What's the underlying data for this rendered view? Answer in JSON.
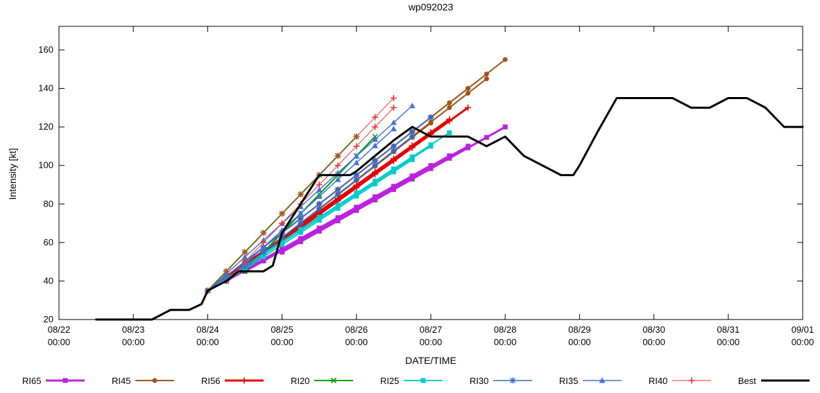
{
  "title": "wp092023",
  "axes": {
    "x": {
      "label": "DATE/TIME",
      "range_hours": [
        0,
        240
      ],
      "tick_interval_hours": 24,
      "ticks": [
        {
          "hour": 0,
          "date": "08/22",
          "time": "00:00"
        },
        {
          "hour": 24,
          "date": "08/23",
          "time": "00:00"
        },
        {
          "hour": 48,
          "date": "08/24",
          "time": "00:00"
        },
        {
          "hour": 72,
          "date": "08/25",
          "time": "00:00"
        },
        {
          "hour": 96,
          "date": "08/26",
          "time": "00:00"
        },
        {
          "hour": 120,
          "date": "08/27",
          "time": "00:00"
        },
        {
          "hour": 144,
          "date": "08/28",
          "time": "00:00"
        },
        {
          "hour": 168,
          "date": "08/29",
          "time": "00:00"
        },
        {
          "hour": 192,
          "date": "08/30",
          "time": "00:00"
        },
        {
          "hour": 216,
          "date": "08/31",
          "time": "00:00"
        },
        {
          "hour": 240,
          "date": "09/01",
          "time": "00:00"
        }
      ]
    },
    "y": {
      "label": "Intensity [kt]",
      "range": [
        20,
        160
      ],
      "ticks": [
        20,
        40,
        60,
        80,
        100,
        120,
        140,
        160
      ]
    }
  },
  "chart_data": {
    "type": "line",
    "title": "wp092023",
    "xlabel": "DATE/TIME",
    "ylabel": "Intensity [kt]",
    "x_unit": "hours since 08/22 00:00",
    "xlim_hours": [
      0,
      240
    ],
    "ylim": [
      20,
      160
    ],
    "grid": false,
    "legend_position": "bottom",
    "series": [
      {
        "name": "RI65",
        "color": "#bb22dd",
        "width": 3,
        "marker": "square",
        "segments": [
          [
            [
              48,
              35
            ],
            [
              120,
              100
            ]
          ],
          [
            [
              54,
              40
            ],
            [
              126,
              105
            ]
          ],
          [
            [
              60,
              45
            ],
            [
              132,
              110
            ]
          ],
          [
            [
              72,
              55
            ],
            [
              144,
              120
            ]
          ]
        ]
      },
      {
        "name": "RI45",
        "color": "#a05418",
        "width": 2,
        "marker": "circle",
        "segments": [
          [
            [
              48,
              35
            ],
            [
              144,
              155
            ]
          ],
          [
            [
              54,
              40
            ],
            [
              138,
              145
            ]
          ],
          [
            [
              60,
              50
            ],
            [
              132,
              140
            ]
          ],
          [
            [
              66,
              55
            ],
            [
              120,
              122
            ]
          ]
        ]
      },
      {
        "name": "RI56",
        "color": "#e60000",
        "width": 3,
        "marker": "plus",
        "segments": [
          [
            [
              48,
              35
            ],
            [
              126,
              124
            ]
          ],
          [
            [
              54,
              40
            ],
            [
              132,
              130
            ]
          ],
          [
            [
              60,
              48
            ],
            [
              120,
              117
            ]
          ]
        ]
      },
      {
        "name": "RI20",
        "color": "#00a000",
        "width": 2,
        "marker": "x",
        "segments": [
          [
            [
              48,
              35
            ],
            [
              96,
              115
            ]
          ],
          [
            [
              60,
              45
            ],
            [
              102,
              115
            ]
          ]
        ]
      },
      {
        "name": "RI25",
        "color": "#00cccc",
        "width": 2,
        "marker": "square",
        "segments": [
          [
            [
              48,
              35
            ],
            [
              120,
              110
            ]
          ],
          [
            [
              54,
              40
            ],
            [
              114,
              103
            ]
          ],
          [
            [
              60,
              48
            ],
            [
              126,
              117
            ]
          ]
        ]
      },
      {
        "name": "RI30",
        "color": "#2e6bd6",
        "width": 1.5,
        "marker": "star",
        "segments": [
          [
            [
              48,
              35
            ],
            [
              120,
              125
            ]
          ],
          [
            [
              54,
              40
            ],
            [
              114,
              115
            ]
          ]
        ]
      },
      {
        "name": "RI35",
        "color": "#4472e0",
        "width": 1.5,
        "marker": "triangle",
        "segments": [
          [
            [
              48,
              35
            ],
            [
              114,
              131
            ]
          ],
          [
            [
              54,
              40
            ],
            [
              108,
              119
            ]
          ]
        ]
      },
      {
        "name": "RI40",
        "color": "#ee3333",
        "width": 1,
        "marker": "plus",
        "segments": [
          [
            [
              48,
              35
            ],
            [
              108,
              135
            ]
          ],
          [
            [
              54,
              40
            ],
            [
              108,
              130
            ]
          ]
        ]
      },
      {
        "name": "Best",
        "color": "#000000",
        "width": 3,
        "marker": "none",
        "points": [
          [
            12,
            20
          ],
          [
            30,
            20
          ],
          [
            36,
            25
          ],
          [
            42,
            25
          ],
          [
            46,
            28
          ],
          [
            48,
            35
          ],
          [
            54,
            40
          ],
          [
            58,
            45
          ],
          [
            66,
            45
          ],
          [
            69,
            48
          ],
          [
            72,
            65
          ],
          [
            78,
            80
          ],
          [
            84,
            95
          ],
          [
            94,
            95
          ],
          [
            96,
            97
          ],
          [
            102,
            105
          ],
          [
            108,
            113
          ],
          [
            114,
            120
          ],
          [
            120,
            115
          ],
          [
            132,
            115
          ],
          [
            138,
            110
          ],
          [
            144,
            115
          ],
          [
            150,
            105
          ],
          [
            156,
            100
          ],
          [
            162,
            95
          ],
          [
            166,
            95
          ],
          [
            168,
            100
          ],
          [
            174,
            118
          ],
          [
            180,
            135
          ],
          [
            198,
            135
          ],
          [
            204,
            130
          ],
          [
            210,
            130
          ],
          [
            216,
            135
          ],
          [
            222,
            135
          ],
          [
            228,
            130
          ],
          [
            234,
            120
          ],
          [
            240,
            120
          ]
        ]
      }
    ]
  }
}
